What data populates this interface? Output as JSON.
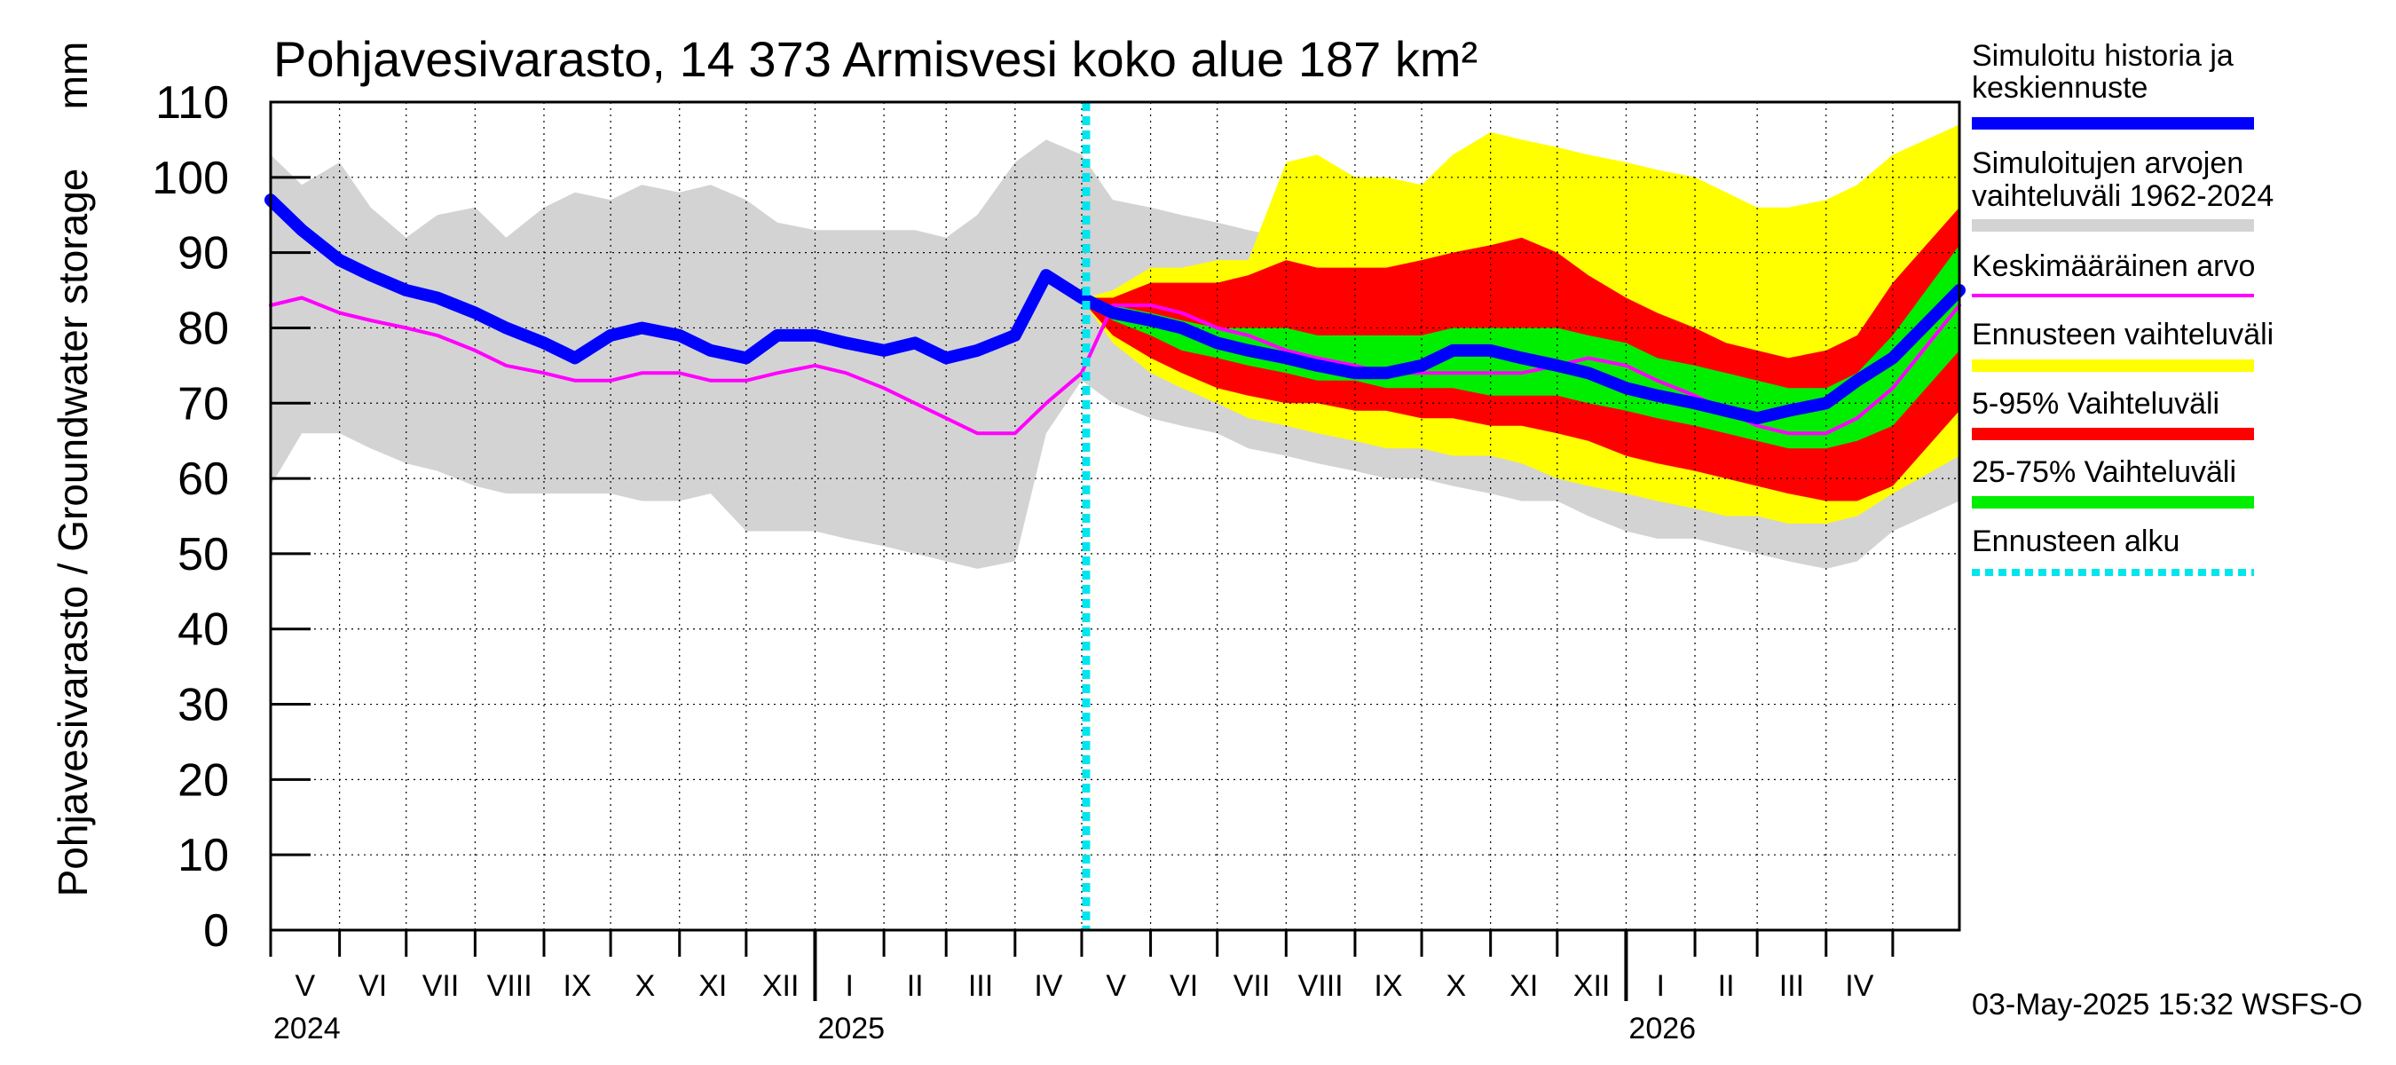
{
  "chart_data": {
    "type": "area",
    "title": "Pohjavesivarasto, 14 373 Armisvesi koko alue 187 km²",
    "ylabel": "Pohjavesivarasto / Groundwater storage",
    "yunit": "mm",
    "ylim": [
      0,
      110
    ],
    "yticks": [
      0,
      10,
      20,
      30,
      40,
      50,
      60,
      70,
      80,
      90,
      100,
      110
    ],
    "xrange": [
      "2024-05-01",
      "2026-05-31"
    ],
    "forecast_start": "2025-05-03",
    "grid": true,
    "legend_position": "right",
    "months": [
      {
        "label": "V",
        "start": "2024-05-01"
      },
      {
        "label": "VI",
        "start": "2024-06-01"
      },
      {
        "label": "VII",
        "start": "2024-07-01"
      },
      {
        "label": "VIII",
        "start": "2024-08-01"
      },
      {
        "label": "IX",
        "start": "2024-09-01"
      },
      {
        "label": "X",
        "start": "2024-10-01"
      },
      {
        "label": "XI",
        "start": "2024-11-01"
      },
      {
        "label": "XII",
        "start": "2024-12-01"
      },
      {
        "label": "I",
        "start": "2025-01-01"
      },
      {
        "label": "II",
        "start": "2025-02-01"
      },
      {
        "label": "III",
        "start": "2025-03-01"
      },
      {
        "label": "IV",
        "start": "2025-04-01"
      },
      {
        "label": "V",
        "start": "2025-05-01"
      },
      {
        "label": "VI",
        "start": "2025-06-01"
      },
      {
        "label": "VII",
        "start": "2025-07-01"
      },
      {
        "label": "VIII",
        "start": "2025-08-01"
      },
      {
        "label": "IX",
        "start": "2025-09-01"
      },
      {
        "label": "X",
        "start": "2025-10-01"
      },
      {
        "label": "XI",
        "start": "2025-11-01"
      },
      {
        "label": "XII",
        "start": "2025-12-01"
      },
      {
        "label": "I",
        "start": "2026-01-01"
      },
      {
        "label": "II",
        "start": "2026-02-01"
      },
      {
        "label": "III",
        "start": "2026-03-01"
      },
      {
        "label": "IV",
        "start": "2026-04-01"
      },
      {
        "label": "",
        "start": "2026-05-01"
      }
    ],
    "years": [
      {
        "label": "2024",
        "start": "2024-05-01"
      },
      {
        "label": "2025",
        "start": "2025-01-01"
      },
      {
        "label": "2026",
        "start": "2026-01-01"
      }
    ],
    "series": [
      {
        "name": "Simuloitujen arvojen vaihteluväli 1962-2024",
        "kind": "band",
        "color": "#d3d3d3",
        "x": [
          "2024-05-01",
          "2024-05-15",
          "2024-06-01",
          "2024-06-15",
          "2024-07-01",
          "2024-07-15",
          "2024-08-01",
          "2024-08-15",
          "2024-09-01",
          "2024-09-15",
          "2024-10-01",
          "2024-10-15",
          "2024-11-01",
          "2024-11-15",
          "2024-12-01",
          "2024-12-15",
          "2025-01-01",
          "2025-01-15",
          "2025-02-01",
          "2025-02-15",
          "2025-03-01",
          "2025-03-15",
          "2025-04-01",
          "2025-04-15",
          "2025-05-01",
          "2025-05-15",
          "2025-06-01",
          "2025-06-15",
          "2025-07-01",
          "2025-07-15",
          "2025-08-01",
          "2025-08-15",
          "2025-09-01",
          "2025-09-15",
          "2025-10-01",
          "2025-10-15",
          "2025-11-01",
          "2025-11-15",
          "2025-12-01",
          "2025-12-15",
          "2026-01-01",
          "2026-01-15",
          "2026-02-01",
          "2026-02-15",
          "2026-03-01",
          "2026-03-15",
          "2026-04-01",
          "2026-04-15",
          "2026-05-01",
          "2026-05-31"
        ],
        "upper": [
          103,
          99,
          102,
          96,
          92,
          95,
          96,
          92,
          96,
          98,
          97,
          99,
          98,
          99,
          97,
          94,
          93,
          93,
          93,
          93,
          92,
          95,
          102,
          105,
          103,
          97,
          96,
          95,
          94,
          93,
          92,
          92,
          93,
          92,
          93,
          92,
          93,
          92,
          92,
          90,
          90,
          90,
          89,
          89,
          89,
          90,
          91,
          95,
          98,
          100
        ],
        "lower": [
          59,
          66,
          66,
          64,
          62,
          61,
          59,
          58,
          58,
          58,
          58,
          57,
          57,
          58,
          53,
          53,
          53,
          52,
          51,
          50,
          49,
          48,
          49,
          66,
          73,
          70,
          68,
          67,
          66,
          64,
          63,
          62,
          61,
          60,
          60,
          59,
          58,
          57,
          57,
          55,
          53,
          52,
          52,
          51,
          50,
          49,
          48,
          49,
          53,
          57
        ]
      },
      {
        "name": "Ennusteen vaihteluväli",
        "kind": "band",
        "color": "#ffff00",
        "x": [
          "2025-05-03",
          "2025-05-15",
          "2025-06-01",
          "2025-06-15",
          "2025-07-01",
          "2025-07-15",
          "2025-08-01",
          "2025-08-15",
          "2025-09-01",
          "2025-09-15",
          "2025-10-01",
          "2025-10-15",
          "2025-11-01",
          "2025-11-15",
          "2025-12-01",
          "2025-12-15",
          "2026-01-01",
          "2026-01-15",
          "2026-02-01",
          "2026-02-15",
          "2026-03-01",
          "2026-03-15",
          "2026-04-01",
          "2026-04-15",
          "2026-05-01",
          "2026-05-31"
        ],
        "upper": [
          84,
          85,
          88,
          88,
          89,
          89,
          102,
          103,
          100,
          100,
          99,
          103,
          106,
          105,
          104,
          103,
          102,
          101,
          100,
          98,
          96,
          96,
          97,
          99,
          103,
          107
        ],
        "lower": [
          83,
          78,
          74,
          72,
          70,
          68,
          67,
          66,
          65,
          64,
          64,
          63,
          63,
          62,
          60,
          59,
          58,
          57,
          56,
          55,
          55,
          54,
          54,
          55,
          58,
          63
        ]
      },
      {
        "name": "5-95% Vaihteluväli",
        "kind": "band",
        "color": "#ff0000",
        "x": [
          "2025-05-03",
          "2025-05-15",
          "2025-06-01",
          "2025-06-15",
          "2025-07-01",
          "2025-07-15",
          "2025-08-01",
          "2025-08-15",
          "2025-09-01",
          "2025-09-15",
          "2025-10-01",
          "2025-10-15",
          "2025-11-01",
          "2025-11-15",
          "2025-12-01",
          "2025-12-15",
          "2026-01-01",
          "2026-01-15",
          "2026-02-01",
          "2026-02-15",
          "2026-03-01",
          "2026-03-15",
          "2026-04-01",
          "2026-04-15",
          "2026-05-01",
          "2026-05-31"
        ],
        "upper": [
          84,
          84,
          86,
          86,
          86,
          87,
          89,
          88,
          88,
          88,
          89,
          90,
          91,
          92,
          90,
          87,
          84,
          82,
          80,
          78,
          77,
          76,
          77,
          79,
          86,
          96
        ],
        "lower": [
          83,
          79,
          76,
          74,
          72,
          71,
          70,
          70,
          69,
          69,
          68,
          68,
          67,
          67,
          66,
          65,
          63,
          62,
          61,
          60,
          59,
          58,
          57,
          57,
          59,
          69
        ]
      },
      {
        "name": "25-75% Vaihteluväli",
        "kind": "band",
        "color": "#00ee00",
        "x": [
          "2025-05-03",
          "2025-05-15",
          "2025-06-01",
          "2025-06-15",
          "2025-07-01",
          "2025-07-15",
          "2025-08-01",
          "2025-08-15",
          "2025-09-01",
          "2025-09-15",
          "2025-10-01",
          "2025-10-15",
          "2025-11-01",
          "2025-11-15",
          "2025-12-01",
          "2025-12-15",
          "2026-01-01",
          "2026-01-15",
          "2026-02-01",
          "2026-02-15",
          "2026-03-01",
          "2026-03-15",
          "2026-04-01",
          "2026-04-15",
          "2026-05-01",
          "2026-05-31"
        ],
        "upper": [
          84,
          83,
          82,
          81,
          80,
          80,
          80,
          79,
          79,
          79,
          79,
          80,
          80,
          80,
          80,
          79,
          78,
          76,
          75,
          74,
          73,
          72,
          72,
          74,
          79,
          91
        ],
        "lower": [
          83,
          81,
          79,
          77,
          76,
          75,
          74,
          73,
          73,
          72,
          72,
          72,
          71,
          71,
          71,
          70,
          69,
          68,
          67,
          66,
          65,
          64,
          64,
          65,
          67,
          77
        ]
      },
      {
        "name": "Keskimääräinen arvo",
        "kind": "line",
        "color": "#ff00ff",
        "x": [
          "2024-05-01",
          "2024-05-15",
          "2024-06-01",
          "2024-06-15",
          "2024-07-01",
          "2024-07-15",
          "2024-08-01",
          "2024-08-15",
          "2024-09-01",
          "2024-09-15",
          "2024-10-01",
          "2024-10-15",
          "2024-11-01",
          "2024-11-15",
          "2024-12-01",
          "2024-12-15",
          "2025-01-01",
          "2025-01-15",
          "2025-02-01",
          "2025-02-15",
          "2025-03-01",
          "2025-03-15",
          "2025-04-01",
          "2025-04-15",
          "2025-05-01",
          "2025-05-15",
          "2025-06-01",
          "2025-06-15",
          "2025-07-01",
          "2025-07-15",
          "2025-08-01",
          "2025-08-15",
          "2025-09-01",
          "2025-09-15",
          "2025-10-01",
          "2025-10-15",
          "2025-11-01",
          "2025-11-15",
          "2025-12-01",
          "2025-12-15",
          "2026-01-01",
          "2026-01-15",
          "2026-02-01",
          "2026-02-15",
          "2026-03-01",
          "2026-03-15",
          "2026-04-01",
          "2026-04-15",
          "2026-05-01",
          "2026-05-31"
        ],
        "values": [
          83,
          84,
          82,
          81,
          80,
          79,
          77,
          75,
          74,
          73,
          73,
          74,
          74,
          73,
          73,
          74,
          75,
          74,
          72,
          70,
          68,
          66,
          66,
          70,
          74,
          83,
          83,
          82,
          80,
          79,
          77,
          76,
          75,
          74,
          74,
          74,
          74,
          74,
          75,
          76,
          75,
          73,
          71,
          69,
          67,
          66,
          66,
          68,
          72,
          83
        ]
      },
      {
        "name": "Simuloitu historia ja keskiennuste",
        "kind": "line",
        "color": "#0000ff",
        "x": [
          "2024-05-01",
          "2024-05-15",
          "2024-06-01",
          "2024-06-15",
          "2024-07-01",
          "2024-07-15",
          "2024-08-01",
          "2024-08-15",
          "2024-09-01",
          "2024-09-15",
          "2024-10-01",
          "2024-10-15",
          "2024-11-01",
          "2024-11-15",
          "2024-12-01",
          "2024-12-15",
          "2025-01-01",
          "2025-01-15",
          "2025-02-01",
          "2025-02-15",
          "2025-03-01",
          "2025-03-15",
          "2025-04-01",
          "2025-04-15",
          "2025-05-01",
          "2025-05-15",
          "2025-06-01",
          "2025-06-15",
          "2025-07-01",
          "2025-07-15",
          "2025-08-01",
          "2025-08-15",
          "2025-09-01",
          "2025-09-15",
          "2025-10-01",
          "2025-10-15",
          "2025-11-01",
          "2025-11-15",
          "2025-12-01",
          "2025-12-15",
          "2026-01-01",
          "2026-01-15",
          "2026-02-01",
          "2026-02-15",
          "2026-03-01",
          "2026-03-15",
          "2026-04-01",
          "2026-04-15",
          "2026-05-01",
          "2026-05-31"
        ],
        "values": [
          97,
          93,
          89,
          87,
          85,
          84,
          82,
          80,
          78,
          76,
          79,
          80,
          79,
          77,
          76,
          79,
          79,
          78,
          77,
          78,
          76,
          77,
          79,
          87,
          84,
          82,
          81,
          80,
          78,
          77,
          76,
          75,
          74,
          74,
          75,
          77,
          77,
          76,
          75,
          74,
          72,
          71,
          70,
          69,
          68,
          69,
          70,
          73,
          76,
          85
        ]
      },
      {
        "name": "Ennusteen alku",
        "kind": "vline",
        "color": "#00e5ee",
        "x": "2025-05-03"
      }
    ]
  },
  "legend": {
    "items": [
      {
        "label": "Simuloitu historia ja keskiennuste",
        "color": "#0000ff",
        "style": "thick"
      },
      {
        "label": "Simuloitujen arvojen vaihteluväli 1962-2024",
        "color": "#d3d3d3",
        "style": "thick"
      },
      {
        "label": "Keskimääräinen arvo",
        "color": "#ff00ff",
        "style": "thin"
      },
      {
        "label": "Ennusteen vaihteluväli",
        "color": "#ffff00",
        "style": "thick"
      },
      {
        "label": "5-95% Vaihteluväli",
        "color": "#ff0000",
        "style": "thick"
      },
      {
        "label": "25-75% Vaihteluväli",
        "color": "#00ee00",
        "style": "thick"
      },
      {
        "label": "Ennusteen alku",
        "color": "#00e5ee",
        "style": "dotted"
      }
    ]
  },
  "footer": {
    "timestamp": "03-May-2025 15:32 WSFS-O"
  }
}
